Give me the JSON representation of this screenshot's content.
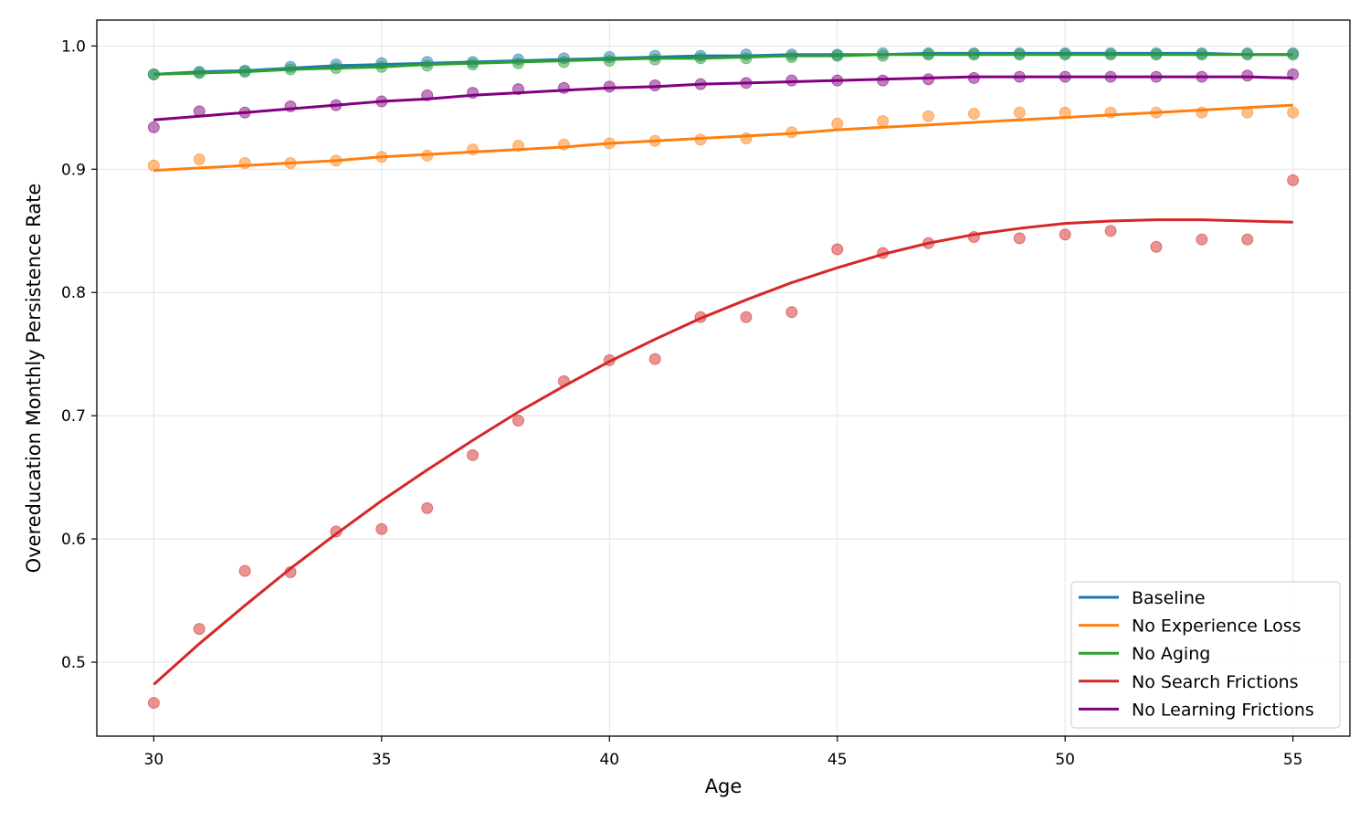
{
  "chart_data": {
    "type": "scatter",
    "title": "",
    "xlabel": "Age",
    "ylabel": "Overeducation Monthly Persistence Rate",
    "xlim": [
      28.75,
      56.25
    ],
    "ylim": [
      0.44,
      1.021
    ],
    "xticks": [
      30,
      35,
      40,
      45,
      50,
      55
    ],
    "yticks": [
      0.5,
      0.6,
      0.7,
      0.8,
      0.9,
      1.0
    ],
    "ytick_labels": [
      "0.5",
      "0.6",
      "0.7",
      "0.8",
      "0.9",
      "1.0"
    ],
    "grid": true,
    "legend_position": "lower-right",
    "x": [
      30,
      31,
      32,
      33,
      34,
      35,
      36,
      37,
      38,
      39,
      40,
      41,
      42,
      43,
      44,
      45,
      46,
      47,
      48,
      49,
      50,
      51,
      52,
      53,
      54,
      55
    ],
    "series": [
      {
        "name": "Baseline",
        "color": "#1f77b4",
        "points": [
          0.977,
          0.979,
          0.98,
          0.983,
          0.985,
          0.986,
          0.987,
          0.987,
          0.989,
          0.99,
          0.991,
          0.992,
          0.992,
          0.993,
          0.993,
          0.993,
          0.994,
          0.994,
          0.994,
          0.994,
          0.994,
          0.994,
          0.994,
          0.994,
          0.994,
          0.994
        ],
        "fit": [
          0.977,
          0.979,
          0.98,
          0.982,
          0.984,
          0.985,
          0.986,
          0.987,
          0.988,
          0.989,
          0.99,
          0.991,
          0.992,
          0.992,
          0.993,
          0.993,
          0.993,
          0.994,
          0.994,
          0.994,
          0.994,
          0.994,
          0.994,
          0.994,
          0.993,
          0.993
        ]
      },
      {
        "name": "No Experience Loss",
        "color": "#ff7f0e",
        "points": [
          0.903,
          0.908,
          0.905,
          0.905,
          0.907,
          0.91,
          0.911,
          0.916,
          0.919,
          0.92,
          0.921,
          0.923,
          0.924,
          0.925,
          0.93,
          0.937,
          0.939,
          0.943,
          0.945,
          0.946,
          0.946,
          0.946,
          0.946,
          0.946,
          0.946,
          0.946
        ],
        "fit": [
          0.899,
          0.901,
          0.903,
          0.905,
          0.907,
          0.91,
          0.912,
          0.914,
          0.916,
          0.918,
          0.921,
          0.923,
          0.925,
          0.927,
          0.929,
          0.932,
          0.934,
          0.936,
          0.938,
          0.94,
          0.942,
          0.944,
          0.946,
          0.948,
          0.95,
          0.952
        ]
      },
      {
        "name": "No Aging",
        "color": "#2ca02c",
        "points": [
          0.977,
          0.978,
          0.979,
          0.981,
          0.982,
          0.983,
          0.984,
          0.985,
          0.986,
          0.987,
          0.988,
          0.989,
          0.99,
          0.99,
          0.991,
          0.992,
          0.992,
          0.993,
          0.993,
          0.993,
          0.993,
          0.993,
          0.993,
          0.993,
          0.993,
          0.993
        ],
        "fit": [
          0.977,
          0.978,
          0.979,
          0.981,
          0.982,
          0.983,
          0.985,
          0.986,
          0.987,
          0.988,
          0.989,
          0.99,
          0.99,
          0.991,
          0.992,
          0.992,
          0.993,
          0.993,
          0.993,
          0.993,
          0.993,
          0.993,
          0.993,
          0.993,
          0.993,
          0.993
        ]
      },
      {
        "name": "No Search Frictions",
        "color": "#d62728",
        "points": [
          0.467,
          0.527,
          0.574,
          0.573,
          0.606,
          0.608,
          0.625,
          0.668,
          0.696,
          0.728,
          0.745,
          0.746,
          0.78,
          0.78,
          0.784,
          0.835,
          0.832,
          0.84,
          0.845,
          0.844,
          0.847,
          0.85,
          0.837,
          0.843,
          0.843,
          0.891
        ],
        "fit": [
          0.482,
          0.515,
          0.546,
          0.576,
          0.604,
          0.631,
          0.656,
          0.68,
          0.703,
          0.724,
          0.744,
          0.762,
          0.779,
          0.794,
          0.808,
          0.82,
          0.831,
          0.84,
          0.847,
          0.852,
          0.856,
          0.858,
          0.859,
          0.859,
          0.858,
          0.857
        ]
      },
      {
        "name": "No Learning Frictions",
        "color": "#800080",
        "points": [
          0.934,
          0.947,
          0.946,
          0.951,
          0.952,
          0.955,
          0.96,
          0.962,
          0.965,
          0.966,
          0.967,
          0.968,
          0.969,
          0.97,
          0.972,
          0.972,
          0.972,
          0.973,
          0.974,
          0.975,
          0.975,
          0.975,
          0.975,
          0.975,
          0.976,
          0.977
        ],
        "fit": [
          0.94,
          0.943,
          0.946,
          0.949,
          0.952,
          0.955,
          0.957,
          0.96,
          0.962,
          0.964,
          0.966,
          0.967,
          0.969,
          0.97,
          0.971,
          0.972,
          0.973,
          0.974,
          0.975,
          0.975,
          0.975,
          0.975,
          0.975,
          0.975,
          0.975,
          0.974
        ]
      }
    ]
  }
}
